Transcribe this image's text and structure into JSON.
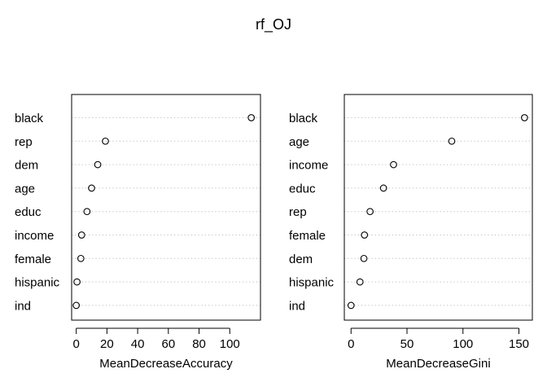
{
  "chart_data": [
    {
      "type": "scatter",
      "title": "rf_OJ",
      "xlabel": "MeanDecreaseAccuracy",
      "ylabel": "",
      "xlim": [
        -3,
        120
      ],
      "xticks": [
        0,
        20,
        40,
        60,
        80,
        100
      ],
      "xticklabels": [
        "0",
        "20",
        "40",
        "60",
        "80",
        "100"
      ],
      "grid": "dotted horizontal guides",
      "categories": [
        "black",
        "rep",
        "dem",
        "age",
        "educ",
        "income",
        "female",
        "hispanic",
        "ind"
      ],
      "values": [
        114,
        19,
        14,
        10,
        7,
        3.5,
        3,
        0.5,
        0
      ]
    },
    {
      "type": "scatter",
      "title": "",
      "xlabel": "MeanDecreaseGini",
      "ylabel": "",
      "xlim": [
        -6,
        162
      ],
      "xticks": [
        0,
        50,
        100,
        150
      ],
      "xticklabels": [
        "0",
        "50",
        "100",
        "150"
      ],
      "grid": "dotted horizontal guides",
      "categories": [
        "black",
        "age",
        "income",
        "educ",
        "rep",
        "female",
        "dem",
        "hispanic",
        "ind"
      ],
      "values": [
        155,
        90,
        38,
        29,
        17,
        12,
        11.5,
        8,
        0
      ]
    }
  ]
}
